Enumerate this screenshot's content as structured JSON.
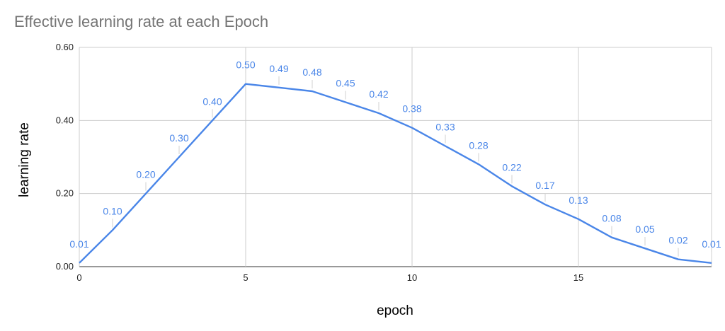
{
  "chart_data": {
    "type": "line",
    "title": "Effective learning rate at each Epoch",
    "xlabel": "epoch",
    "ylabel": "learning rate",
    "xlim": [
      0,
      19
    ],
    "ylim": [
      0,
      0.6
    ],
    "x_ticks": [
      "0",
      "5",
      "10",
      "15"
    ],
    "y_ticks": [
      "0.00",
      "0.20",
      "0.40",
      "0.60"
    ],
    "grid": true,
    "legend": "none",
    "series": [
      {
        "color": "#4a86e8",
        "x": [
          0,
          1,
          2,
          3,
          4,
          5,
          6,
          7,
          8,
          9,
          10,
          11,
          12,
          13,
          14,
          15,
          16,
          17,
          18,
          19
        ],
        "values": [
          0.01,
          0.1,
          0.2,
          0.3,
          0.4,
          0.5,
          0.49,
          0.48,
          0.45,
          0.42,
          0.38,
          0.33,
          0.28,
          0.22,
          0.17,
          0.13,
          0.08,
          0.05,
          0.02,
          0.01
        ],
        "labels": [
          "0.01",
          "0.10",
          "0.20",
          "0.30",
          "0.40",
          "0.50",
          "0.49",
          "0.48",
          "0.45",
          "0.42",
          "0.38",
          "0.33",
          "0.28",
          "0.22",
          "0.17",
          "0.13",
          "0.08",
          "0.05",
          "0.02",
          "0.01"
        ]
      }
    ]
  }
}
